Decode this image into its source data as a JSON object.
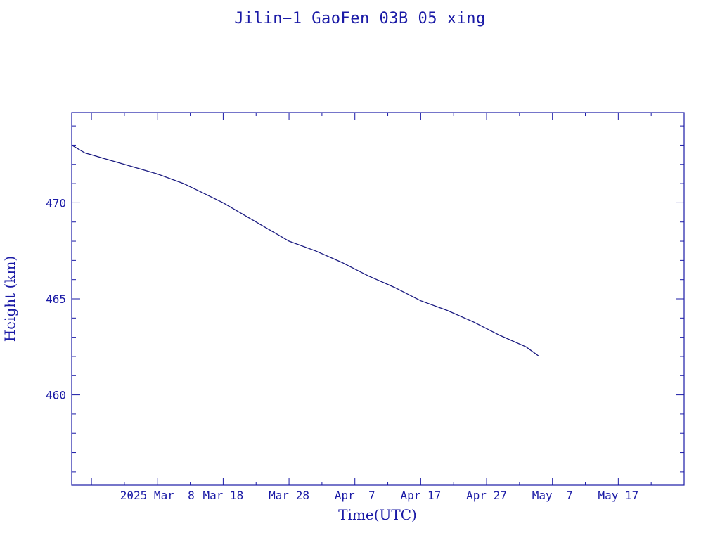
{
  "chart_data": {
    "type": "line",
    "title": "Jilin−1 GaoFen 03B 05 xing",
    "xlabel": "Time(UTC)",
    "ylabel": "Height (km)",
    "x_axis": {
      "type": "date",
      "range": [
        "2025-02-23",
        "2025-05-27"
      ],
      "ticks": [
        {
          "date": "2025-03-08",
          "label": "2025 Mar  8"
        },
        {
          "date": "2025-03-18",
          "label": "Mar 18"
        },
        {
          "date": "2025-03-28",
          "label": "Mar 28"
        },
        {
          "date": "2025-04-07",
          "label": "Apr  7"
        },
        {
          "date": "2025-04-17",
          "label": "Apr 17"
        },
        {
          "date": "2025-04-27",
          "label": "Apr 27"
        },
        {
          "date": "2025-05-07",
          "label": "May  7"
        },
        {
          "date": "2025-05-17",
          "label": "May 17"
        }
      ]
    },
    "y_axis": {
      "range": [
        455.3,
        474.7
      ],
      "ticks": [
        460,
        465,
        470
      ]
    },
    "grid": false,
    "legend": "none",
    "series": [
      {
        "x": [
          "2025-02-23",
          "2025-02-25",
          "2025-02-28",
          "2025-03-04",
          "2025-03-08",
          "2025-03-12",
          "2025-03-15",
          "2025-03-18",
          "2025-03-21",
          "2025-03-23",
          "2025-03-26",
          "2025-03-28",
          "2025-04-01",
          "2025-04-05",
          "2025-04-09",
          "2025-04-13",
          "2025-04-17",
          "2025-04-21",
          "2025-04-25",
          "2025-04-29",
          "2025-05-03",
          "2025-05-05"
        ],
        "y": [
          473.0,
          472.6,
          472.3,
          471.9,
          471.5,
          471.0,
          470.5,
          470.0,
          469.4,
          469.0,
          468.4,
          468.0,
          467.5,
          466.9,
          466.2,
          465.6,
          464.9,
          464.4,
          463.8,
          463.1,
          462.5,
          462.0
        ]
      }
    ],
    "colors": {
      "axis": "#1a1aa6",
      "line": "#1a1a80",
      "background": "#ffffff"
    }
  }
}
